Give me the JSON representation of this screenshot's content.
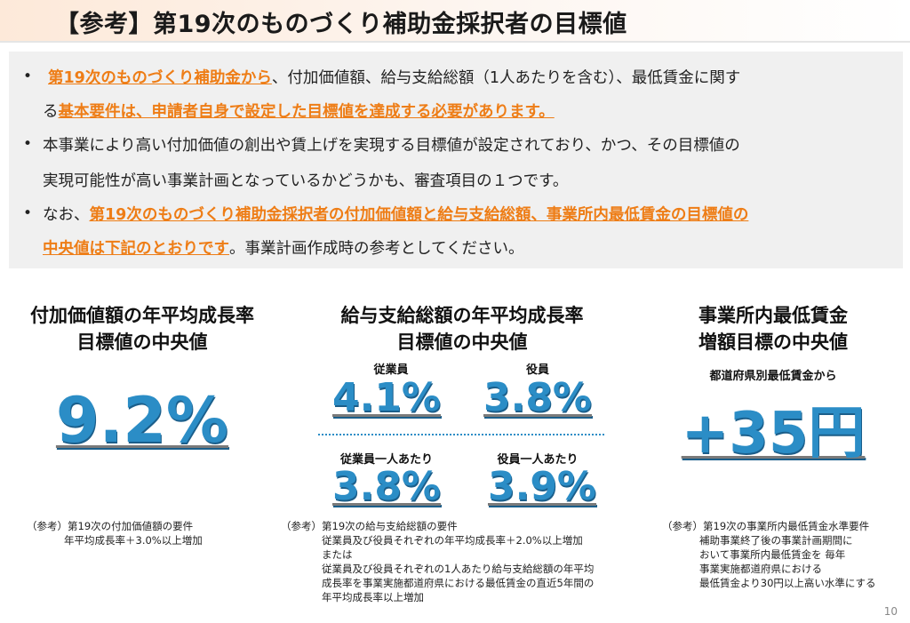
{
  "title": "【参考】第19次のものづくり補助金採択者の目標値",
  "bullets": {
    "b1_l1_hl": "第19次のものづくり補助金から",
    "b1_l1_rest": "、付加価値額、給与支給総額（1人あたりを含む）、最低賃金に関す",
    "b1_l2_pre": "る",
    "b1_l2_hl": "基本要件は、申請者自身で設定した目標値を達成する必要があります。",
    "b2_l1": "本事業により高い付加価値の創出や賃上げを実現する目標値が設定されており、かつ、その目標値の",
    "b2_l2": "実現可能性が高い事業計画となっているかどうかも、審査項目の１つです。",
    "b3_l1_pre": "なお、",
    "b3_l1_hl": "第19次のものづくり補助金採択者の付加価値額と給与支給総額、事業所内最低賃金の目標値の",
    "b3_l2_hl": "中央値は下記のとおりです",
    "b3_l2_rest": "。事業計画作成時の参考としてください。",
    "marker": "•"
  },
  "col1": {
    "head1": "付加価値額の年平均成長率",
    "head2": "目標値の中央値",
    "value": "9.2%",
    "note1": "（参考）第19次の付加価値額の要件",
    "note2": "年平均成長率＋3.0%以上増加"
  },
  "col2": {
    "head1": "給与支給総額の年平均成長率",
    "head2": "目標値の中央値",
    "label_employee": "従業員",
    "value_employee": "4.1%",
    "label_officer": "役員",
    "value_officer": "3.8%",
    "label_employee_per": "従業員一人あたり",
    "value_employee_per": "3.8%",
    "label_officer_per": "役員一人あたり",
    "value_officer_per": "3.9%",
    "note1": "（参考）第19次の給与支給総額の要件",
    "note2": "従業員及び役員それぞれの年平均成長率＋2.0%以上増加",
    "note3": "または",
    "note4": "従業員及び役員それぞれの1人あたり給与支給総額の年平均",
    "note5": "成長率を事業実施都道府県における最低賃金の直近5年間の",
    "note6": "年平均成長率以上増加"
  },
  "col3": {
    "head1": "事業所内最低賃金",
    "head2": "増額目標の中央値",
    "sub": "都道府県別最低賃金から",
    "value": "+35円",
    "note1": "（参考）第19次の事業所内最低賃金水準要件",
    "note2": "補助事業終了後の事業計画期間に",
    "note3": "おいて事業所内最低賃金を 毎年",
    "note4": "事業実施都道府県における",
    "note5": "最低賃金より30円以上高い水準にする"
  },
  "page_number": "10",
  "colors": {
    "accent_orange": "#ee7d16",
    "value_blue": "#2b8dc6"
  }
}
